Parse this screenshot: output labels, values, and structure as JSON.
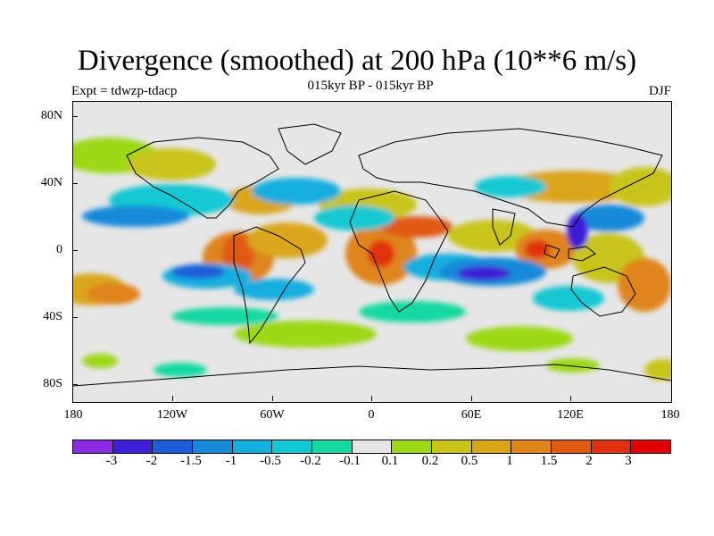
{
  "title": "Divergence (smoothed) at 200 hPa (10**6 m/s)",
  "subtitle": "015kyr BP - 015kyr BP",
  "experiment": "Expt = tdwzp-tdacp",
  "season": "DJF",
  "y_axis_labels": [
    "80N",
    "40N",
    "0",
    "40S",
    "80S"
  ],
  "x_axis_labels": [
    "180",
    "120W",
    "60W",
    "0",
    "60E",
    "120E",
    "180"
  ],
  "colorbar": {
    "colors": [
      "#8a2be2",
      "#3c1fd6",
      "#1a5fd9",
      "#168ad9",
      "#13aede",
      "#12c8d2",
      "#15d8a2",
      "#e6e6e6",
      "#9cd816",
      "#c8c41a",
      "#d9a61a",
      "#e0841a",
      "#e05a12",
      "#e0300e",
      "#e00000"
    ],
    "labels": [
      "-3",
      "-2",
      "-1.5",
      "-1",
      "-0.5",
      "-0.2",
      "-0.1",
      "0.1",
      "0.2",
      "0.5",
      "1",
      "1.5",
      "2",
      "3"
    ]
  }
}
